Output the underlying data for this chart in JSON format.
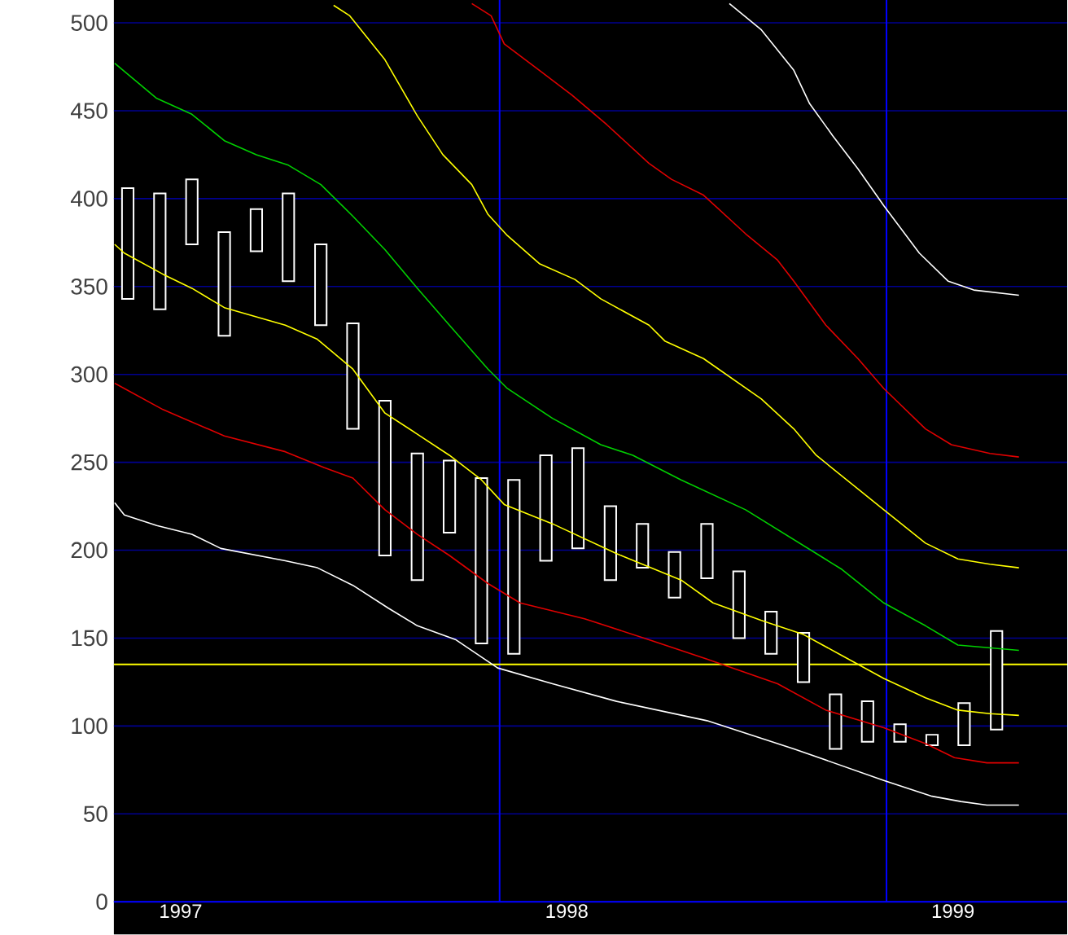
{
  "chart_data": {
    "type": "bar",
    "xlim": [
      1996.827,
      1999.296
    ],
    "ylim": [
      0,
      513
    ],
    "xticks": [
      1997,
      1998,
      1999
    ],
    "yticks": [
      0,
      50,
      100,
      150,
      200,
      250,
      300,
      350,
      400,
      450,
      500
    ],
    "grid": "y",
    "ref_lines": [
      {
        "axis": "x",
        "value": 1997.826,
        "color": "#0000ff"
      },
      {
        "axis": "x",
        "value": 1998.828,
        "color": "#0000ff"
      },
      {
        "axis": "y",
        "value": 135,
        "color": "#ffff00"
      }
    ],
    "series": [
      {
        "color": "#ffffff",
        "x": [
          1996.863,
          1996.946,
          1997.029,
          1997.113,
          1997.196,
          1997.279,
          1997.363,
          1997.446,
          1997.529,
          1997.613,
          1997.696,
          1997.779,
          1997.863,
          1997.946,
          1998.029,
          1998.113,
          1998.196,
          1998.279,
          1998.363,
          1998.446,
          1998.529,
          1998.613,
          1998.696,
          1998.779,
          1998.863,
          1998.946,
          1999.029,
          1999.113
        ],
        "base": [
          343,
          337,
          374,
          322,
          370,
          353,
          328,
          269,
          197,
          183,
          210,
          147,
          141,
          194,
          201,
          183,
          190,
          173,
          184,
          150,
          141,
          125,
          87,
          91,
          91,
          89,
          89,
          98
        ],
        "values": [
          63,
          66,
          37,
          59,
          24,
          50,
          46,
          60,
          88,
          72,
          41,
          94,
          99,
          60,
          57,
          42,
          25,
          26,
          31,
          38,
          24,
          28,
          31,
          23,
          10,
          6,
          24,
          56
        ]
      },
      {
        "type": "line",
        "color": "#ffffff",
        "x": [
          1996.829,
          1996.854,
          1996.938,
          1997.029,
          1997.104,
          1997.271,
          1997.354,
          1997.446,
          1997.538,
          1997.613,
          1997.713,
          1997.821,
          1997.963,
          1998.129,
          1998.363,
          1998.588,
          1998.821,
          1998.946,
          1999.021,
          1999.088,
          1999.171
        ],
        "values": [
          227,
          220,
          214,
          209,
          201,
          194,
          190,
          180,
          167,
          157,
          149,
          133,
          124,
          114,
          103,
          87,
          69,
          60,
          57,
          55,
          55
        ]
      },
      {
        "type": "line",
        "color": "#e00000",
        "x": [
          1996.829,
          1996.954,
          1997.113,
          1997.271,
          1997.371,
          1997.446,
          1997.529,
          1997.613,
          1997.696,
          1997.796,
          1997.879,
          1998.046,
          1998.213,
          1998.363,
          1998.546,
          1998.671,
          1998.821,
          1998.929,
          1999.004,
          1999.088,
          1999.171
        ],
        "values": [
          295,
          280,
          265,
          256,
          247,
          241,
          223,
          209,
          197,
          181,
          170,
          161,
          149,
          138,
          124,
          109,
          99,
          90,
          82,
          79,
          79
        ]
      },
      {
        "type": "line",
        "color": "#ffff00",
        "x": [
          1996.829,
          1996.854,
          1996.954,
          1997.029,
          1997.113,
          1997.271,
          1997.354,
          1997.446,
          1997.529,
          1997.613,
          1997.696,
          1997.779,
          1997.838,
          1997.963,
          1998.129,
          1998.296,
          1998.379,
          1998.504,
          1998.613,
          1998.713,
          1998.821,
          1998.929,
          1999.013,
          1999.096,
          1999.171
        ],
        "values": [
          374,
          369,
          357,
          349,
          338,
          328,
          320,
          303,
          278,
          266,
          254,
          240,
          226,
          215,
          198,
          183,
          170,
          160,
          152,
          140,
          127,
          116,
          109,
          107,
          106
        ]
      },
      {
        "type": "line",
        "color": "#00d000",
        "x": [
          1996.829,
          1996.938,
          1997.029,
          1997.113,
          1997.196,
          1997.279,
          1997.363,
          1997.446,
          1997.529,
          1997.613,
          1997.696,
          1997.796,
          1997.846,
          1997.963,
          1998.088,
          1998.171,
          1998.296,
          1998.463,
          1998.588,
          1998.713,
          1998.821,
          1998.929,
          1999.013,
          1999.171
        ],
        "values": [
          477,
          457,
          448,
          433,
          425,
          419,
          408,
          390,
          371,
          349,
          328,
          303,
          292,
          275,
          260,
          254,
          240,
          223,
          206,
          189,
          170,
          157,
          146,
          143
        ]
      },
      {
        "type": "line",
        "color": "#ffff00",
        "x": [
          1997.396,
          1997.438,
          1997.529,
          1997.613,
          1997.679,
          1997.754,
          1997.796,
          1997.846,
          1997.929,
          1998.021,
          1998.088,
          1998.213,
          1998.254,
          1998.354,
          1998.504,
          1998.588,
          1998.646,
          1998.821,
          1998.929,
          1999.013,
          1999.096,
          1999.171
        ],
        "values": [
          510,
          504,
          479,
          447,
          425,
          408,
          391,
          379,
          363,
          354,
          343,
          328,
          319,
          309,
          286,
          269,
          254,
          223,
          204,
          195,
          192,
          190
        ]
      },
      {
        "type": "line",
        "color": "#e00000",
        "x": [
          1997.754,
          1997.804,
          1997.838,
          1997.929,
          1998.013,
          1998.104,
          1998.213,
          1998.271,
          1998.354,
          1998.463,
          1998.546,
          1998.588,
          1998.671,
          1998.754,
          1998.821,
          1998.929,
          1998.996,
          1999.096,
          1999.171
        ],
        "values": [
          511,
          504,
          488,
          473,
          459,
          442,
          420,
          411,
          402,
          380,
          365,
          353,
          328,
          309,
          292,
          269,
          260,
          255,
          253
        ]
      },
      {
        "type": "line",
        "color": "#ffffff",
        "x": [
          1998.421,
          1998.504,
          1998.588,
          1998.629,
          1998.688,
          1998.754,
          1998.821,
          1998.913,
          1998.988,
          1999.054,
          1999.171
        ],
        "values": [
          511,
          496,
          473,
          454,
          436,
          417,
          396,
          369,
          353,
          348,
          345
        ]
      }
    ]
  }
}
